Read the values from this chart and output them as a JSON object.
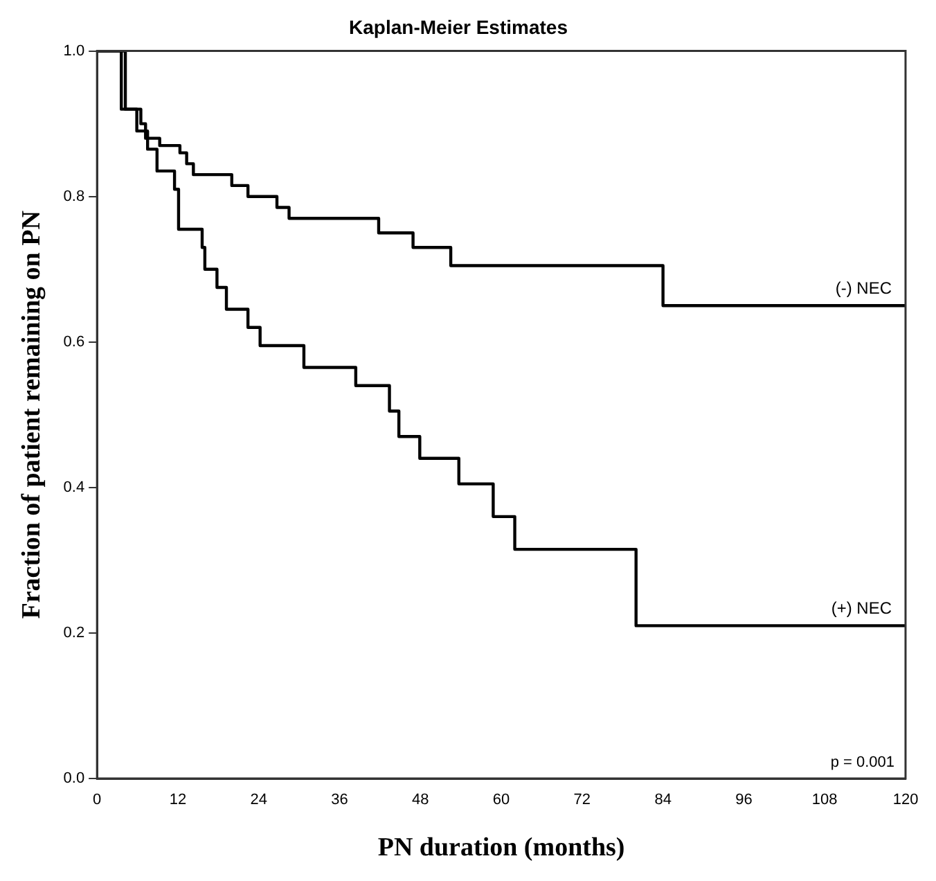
{
  "chart_data": {
    "type": "step",
    "title": "Kaplan-Meier Estimates",
    "xlabel": "PN duration (months)",
    "ylabel": "Fraction of patient remaining on PN",
    "xlim": [
      0,
      120
    ],
    "xticks": [
      0,
      12,
      24,
      36,
      48,
      60,
      72,
      84,
      96,
      108,
      120
    ],
    "ylim": [
      0,
      1
    ],
    "yticks": [
      {
        "value": 0,
        "label": "0.0"
      },
      {
        "value": 0.2,
        "label": "0.2"
      },
      {
        "value": 0.4,
        "label": "0.4"
      },
      {
        "value": 0.6,
        "label": "0.6"
      },
      {
        "value": 0.8,
        "label": "0.8"
      },
      {
        "value": 1,
        "label": "1.0"
      }
    ],
    "grid": false,
    "marker": "none",
    "line_style": "solid",
    "annotations": [
      "p = 0.001"
    ],
    "series": [
      {
        "name": "(-) NEC",
        "color": "#000000",
        "x": [
          0,
          4.2,
          6.5,
          7.2,
          9.3,
          12.3,
          13.3,
          14.3,
          20,
          22.4,
          26.7,
          28.5,
          41.8,
          46.9,
          52.5,
          84,
          120
        ],
        "values": [
          1,
          0.92,
          0.9,
          0.88,
          0.87,
          0.86,
          0.845,
          0.83,
          0.815,
          0.8,
          0.785,
          0.77,
          0.75,
          0.73,
          0.705,
          0.65,
          0.65
        ]
      },
      {
        "name": "(+) NEC",
        "color": "#000000",
        "x": [
          0,
          3.6,
          5.9,
          7.5,
          8.9,
          11.5,
          12.1,
          15.6,
          16,
          17.8,
          19.2,
          22.4,
          24.2,
          30.7,
          38.4,
          43.4,
          44.8,
          47.9,
          53.7,
          58.8,
          62,
          80,
          120
        ],
        "values": [
          1,
          0.92,
          0.89,
          0.865,
          0.835,
          0.81,
          0.755,
          0.73,
          0.7,
          0.675,
          0.645,
          0.62,
          0.595,
          0.565,
          0.54,
          0.505,
          0.47,
          0.44,
          0.405,
          0.36,
          0.315,
          0.21,
          0.21
        ]
      }
    ]
  }
}
